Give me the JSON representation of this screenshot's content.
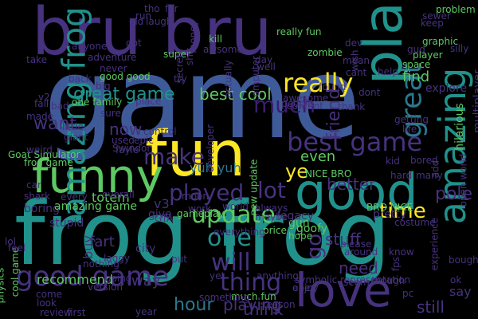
{
  "palette": {
    "background": "#000000",
    "blue": "#3e5a99",
    "teal": "#21918c",
    "green": "#5ec962",
    "yellow": "#fde725",
    "purple": "#46327e",
    "dark": "#3b1c70",
    "cyan": "#2a788e"
  },
  "words": [
    "game",
    "fun",
    "frog frog",
    "bru bru",
    "play",
    "good",
    "funny",
    "love",
    "amazing frog",
    "amazing",
    "really",
    "much",
    "great",
    "best game",
    "update",
    "good game",
    "one",
    "will",
    "played",
    "make",
    "thing",
    "lot",
    "time",
    "great game",
    "best cool",
    "friend",
    "want",
    "hour",
    "recommend",
    "yuh yuh",
    "ye",
    "even",
    "now",
    "fart",
    "way",
    "playing",
    "still",
    "totem",
    "stuff",
    "pole",
    "better",
    "need",
    "think",
    "find",
    "v3",
    "go",
    "give",
    "buy",
    "say",
    "frog game",
    "never",
    "good good",
    "NICE BRO",
    "BRO NICE",
    "one family",
    "Goat Simulator",
    "zombie",
    "kill",
    "super",
    "gun",
    "price",
    "hilarious",
    "multiplayer",
    "explore",
    "cool game",
    "physics",
    "stupid",
    "boring",
    "amazing game",
    "symbolic representation",
    "open world",
    "experience",
    "new update",
    "really fun",
    "much fun",
    "gameplay",
    "laggy",
    "city",
    "legacy",
    "hope",
    "goofy",
    "pretty",
    "please",
    "around",
    "though",
    "fps",
    "know",
    "pc",
    "ok",
    "bought",
    "graphic",
    "player",
    "space",
    "problem",
    "silly",
    "keep",
    "sewer",
    "gud",
    "dev",
    "mean",
    "well",
    "day",
    "content",
    "awesome",
    "computer",
    "actually",
    "secret",
    "place",
    "shit",
    "try",
    "awsome",
    "money",
    "adventure",
    "take",
    "back",
    "big",
    "fall",
    "little",
    "made",
    "giant",
    "used",
    "epic",
    "control",
    "Swindon",
    "weird",
    "car",
    "shark",
    "every",
    "overall",
    "moon",
    "developer",
    "world",
    "work",
    "always",
    "maybe",
    "everything",
    "anything",
    "something",
    "nothing",
    "come",
    "look",
    "year",
    "review",
    "first",
    "lol",
    "feel",
    "version",
    "put",
    "yet",
    "GTA",
    "people",
    "thank",
    "getting",
    "life",
    "hard",
    "many",
    "kid",
    "bored",
    "add",
    "found",
    "costume",
    "old",
    "laugh",
    "got",
    "run",
    "help",
    "dont",
    "cant",
    "wish",
    "anyone",
    "v2",
    "bad",
    "enjoy",
    "open",
    "seem",
    "going",
    "sure",
    "far",
    "tho",
    "reason",
    "fayle"
  ]
}
